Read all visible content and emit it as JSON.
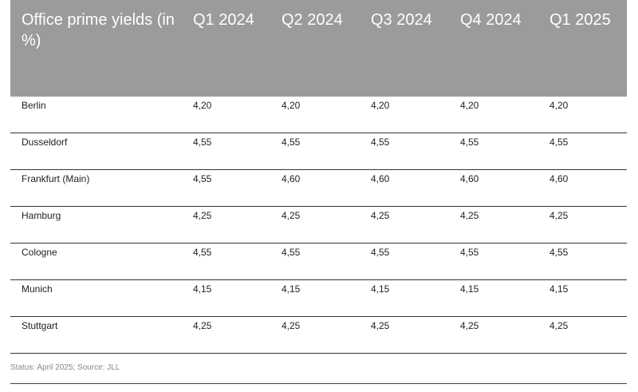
{
  "table": {
    "title": "Office prime yields (in %)",
    "columns": [
      "Q1 2024",
      "Q2 2024",
      "Q3 2024",
      "Q4 2024",
      "Q1 2025"
    ],
    "rows": [
      {
        "city": "Berlin",
        "values": [
          "4,20",
          "4,20",
          "4,20",
          "4,20",
          "4,20"
        ]
      },
      {
        "city": "Dusseldorf",
        "values": [
          "4,55",
          "4,55",
          "4,55",
          "4,55",
          "4,55"
        ]
      },
      {
        "city": "Frankfurt (Main)",
        "values": [
          "4,55",
          "4,60",
          "4,60",
          "4,60",
          "4,60"
        ]
      },
      {
        "city": "Hamburg",
        "values": [
          "4,25",
          "4,25",
          "4,25",
          "4,25",
          "4,25"
        ]
      },
      {
        "city": "Cologne",
        "values": [
          "4,55",
          "4,55",
          "4,55",
          "4,55",
          "4,55"
        ]
      },
      {
        "city": "Munich",
        "values": [
          "4,15",
          "4,15",
          "4,15",
          "4,15",
          "4,15"
        ]
      },
      {
        "city": "Stuttgart",
        "values": [
          "4,25",
          "4,25",
          "4,25",
          "4,25",
          "4,25"
        ]
      }
    ]
  },
  "footer": {
    "source": "Status: April 2025; Source: JLL"
  },
  "colors": {
    "header_bg": "#9b9b9d",
    "header_text": "#ffffff"
  }
}
